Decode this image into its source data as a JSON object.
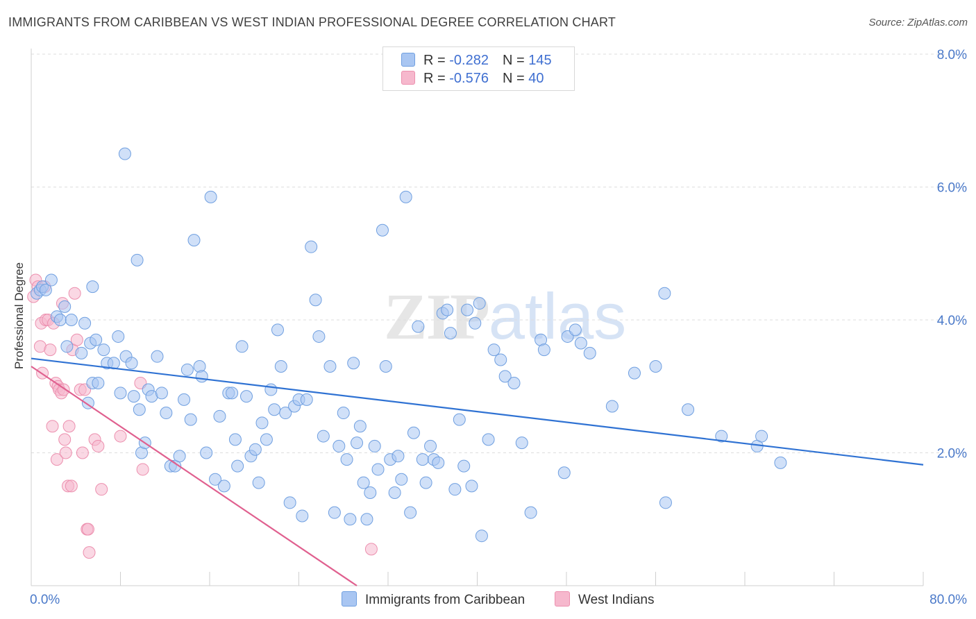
{
  "title": "IMMIGRANTS FROM CARIBBEAN VS WEST INDIAN PROFESSIONAL DEGREE CORRELATION CHART",
  "source": "Source: ZipAtlas.com",
  "watermark": {
    "zip": "ZIP",
    "atlas": "atlas"
  },
  "legend_top": [
    {
      "r_label": "R = ",
      "r_value": "-0.282",
      "n_label": "N = ",
      "n_value": "145"
    },
    {
      "r_label": "R = ",
      "r_value": "-0.576",
      "n_label": "N = ",
      "n_value": "40"
    }
  ],
  "colors": {
    "blue_fill": "#a9c6f2",
    "blue_stroke": "#6f9fe0",
    "blue_line": "#2f72d3",
    "pink_fill": "#f6b8cd",
    "pink_stroke": "#ec8fae",
    "pink_line": "#e0608f",
    "grid": "#dedede",
    "tick_label": "#4a79c9"
  },
  "chart_data": {
    "type": "scatter",
    "title": "IMMIGRANTS FROM CARIBBEAN VS WEST INDIAN PROFESSIONAL DEGREE CORRELATION CHART",
    "xlabel": "",
    "ylabel": "Professional Degree",
    "xlim": [
      0,
      80
    ],
    "ylim": [
      0,
      8.0
    ],
    "x_tick_labels": [
      "0.0%",
      "80.0%"
    ],
    "y_ticks": [
      2.0,
      4.0,
      6.0,
      8.0
    ],
    "y_tick_labels": [
      "2.0%",
      "4.0%",
      "6.0%",
      "8.0%"
    ],
    "grid": "horizontal dashed",
    "legend_placement": "bottom",
    "series": [
      {
        "name": "Immigrants from Caribbean",
        "color": "#a9c6f2",
        "trend": {
          "x": [
            0,
            80
          ],
          "y": [
            3.42,
            1.82
          ]
        },
        "points": [
          [
            0.5,
            4.4
          ],
          [
            0.8,
            4.45
          ],
          [
            1.0,
            4.5
          ],
          [
            1.3,
            4.45
          ],
          [
            1.8,
            4.6
          ],
          [
            2.3,
            4.05
          ],
          [
            3.0,
            4.2
          ],
          [
            2.6,
            4.0
          ],
          [
            3.2,
            3.6
          ],
          [
            3.6,
            4.0
          ],
          [
            4.5,
            3.5
          ],
          [
            4.8,
            3.95
          ],
          [
            5.3,
            3.65
          ],
          [
            5.8,
            3.7
          ],
          [
            5.5,
            4.5
          ],
          [
            5.1,
            2.75
          ],
          [
            5.5,
            3.05
          ],
          [
            6.0,
            3.05
          ],
          [
            6.5,
            3.55
          ],
          [
            6.8,
            3.35
          ],
          [
            7.4,
            3.35
          ],
          [
            7.8,
            3.75
          ],
          [
            8.0,
            2.9
          ],
          [
            8.4,
            6.5
          ],
          [
            8.5,
            3.45
          ],
          [
            9.0,
            3.35
          ],
          [
            9.2,
            2.85
          ],
          [
            9.5,
            4.9
          ],
          [
            9.7,
            2.65
          ],
          [
            9.9,
            2.0
          ],
          [
            10.2,
            2.15
          ],
          [
            10.5,
            2.95
          ],
          [
            10.8,
            2.85
          ],
          [
            11.3,
            3.45
          ],
          [
            11.7,
            2.9
          ],
          [
            12.1,
            2.6
          ],
          [
            12.5,
            1.8
          ],
          [
            12.9,
            1.8
          ],
          [
            13.3,
            1.95
          ],
          [
            13.7,
            2.8
          ],
          [
            14.0,
            3.25
          ],
          [
            14.3,
            2.5
          ],
          [
            14.6,
            5.2
          ],
          [
            15.1,
            3.3
          ],
          [
            15.3,
            3.15
          ],
          [
            15.7,
            2.0
          ],
          [
            16.1,
            5.85
          ],
          [
            16.5,
            1.6
          ],
          [
            16.9,
            2.55
          ],
          [
            17.3,
            1.5
          ],
          [
            17.7,
            2.9
          ],
          [
            18.0,
            2.9
          ],
          [
            18.3,
            2.2
          ],
          [
            18.5,
            1.8
          ],
          [
            18.9,
            3.6
          ],
          [
            19.3,
            2.85
          ],
          [
            19.7,
            1.95
          ],
          [
            20.1,
            2.05
          ],
          [
            20.4,
            1.55
          ],
          [
            20.7,
            2.45
          ],
          [
            21.1,
            2.2
          ],
          [
            21.5,
            2.95
          ],
          [
            21.8,
            2.65
          ],
          [
            22.1,
            3.85
          ],
          [
            22.4,
            3.3
          ],
          [
            22.8,
            2.6
          ],
          [
            23.2,
            1.25
          ],
          [
            23.6,
            2.7
          ],
          [
            24.0,
            2.8
          ],
          [
            24.3,
            1.05
          ],
          [
            24.7,
            2.8
          ],
          [
            25.1,
            5.1
          ],
          [
            25.5,
            4.3
          ],
          [
            25.8,
            3.75
          ],
          [
            26.2,
            2.25
          ],
          [
            26.8,
            3.3
          ],
          [
            27.2,
            1.1
          ],
          [
            27.6,
            2.1
          ],
          [
            28.0,
            2.6
          ],
          [
            28.3,
            1.9
          ],
          [
            28.6,
            1.0
          ],
          [
            28.9,
            3.35
          ],
          [
            29.2,
            2.15
          ],
          [
            29.5,
            2.4
          ],
          [
            29.8,
            1.55
          ],
          [
            30.1,
            1.0
          ],
          [
            30.4,
            1.4
          ],
          [
            30.8,
            2.1
          ],
          [
            31.1,
            1.75
          ],
          [
            31.5,
            5.35
          ],
          [
            31.8,
            3.3
          ],
          [
            32.2,
            1.9
          ],
          [
            32.6,
            1.4
          ],
          [
            32.9,
            1.95
          ],
          [
            33.2,
            1.6
          ],
          [
            33.6,
            5.85
          ],
          [
            34.0,
            1.1
          ],
          [
            34.3,
            2.3
          ],
          [
            34.7,
            3.9
          ],
          [
            35.1,
            1.9
          ],
          [
            35.4,
            1.55
          ],
          [
            35.8,
            2.1
          ],
          [
            36.1,
            1.9
          ],
          [
            36.5,
            1.85
          ],
          [
            36.9,
            4.1
          ],
          [
            37.3,
            4.15
          ],
          [
            37.6,
            3.8
          ],
          [
            38.0,
            1.45
          ],
          [
            38.4,
            2.5
          ],
          [
            38.8,
            1.8
          ],
          [
            39.1,
            4.15
          ],
          [
            39.5,
            1.5
          ],
          [
            39.8,
            3.95
          ],
          [
            40.2,
            4.25
          ],
          [
            40.4,
            0.75
          ],
          [
            41.0,
            2.2
          ],
          [
            41.5,
            3.55
          ],
          [
            42.1,
            3.4
          ],
          [
            42.5,
            3.15
          ],
          [
            43.3,
            3.05
          ],
          [
            44.0,
            2.15
          ],
          [
            44.8,
            1.1
          ],
          [
            45.7,
            3.7
          ],
          [
            46.0,
            3.55
          ],
          [
            47.8,
            1.7
          ],
          [
            48.1,
            3.75
          ],
          [
            48.8,
            3.85
          ],
          [
            49.3,
            3.65
          ],
          [
            50.1,
            3.5
          ],
          [
            52.1,
            2.7
          ],
          [
            54.1,
            3.2
          ],
          [
            56.0,
            3.3
          ],
          [
            56.8,
            4.4
          ],
          [
            56.9,
            1.25
          ],
          [
            58.9,
            2.65
          ],
          [
            61.9,
            2.25
          ],
          [
            65.1,
            2.1
          ],
          [
            65.5,
            2.25
          ],
          [
            67.2,
            1.85
          ]
        ]
      },
      {
        "name": "West Indians",
        "color": "#f6b8cd",
        "trend": {
          "x": [
            0,
            29.2
          ],
          "y": [
            3.3,
            0.0
          ]
        },
        "points": [
          [
            0.2,
            4.35
          ],
          [
            0.4,
            4.6
          ],
          [
            0.6,
            4.5
          ],
          [
            0.8,
            3.6
          ],
          [
            0.9,
            3.95
          ],
          [
            1.0,
            3.2
          ],
          [
            1.2,
            4.5
          ],
          [
            1.3,
            4.0
          ],
          [
            1.5,
            4.0
          ],
          [
            1.7,
            3.55
          ],
          [
            1.9,
            2.4
          ],
          [
            2.0,
            3.95
          ],
          [
            2.2,
            3.05
          ],
          [
            2.3,
            1.9
          ],
          [
            2.4,
            3.0
          ],
          [
            2.5,
            2.95
          ],
          [
            2.7,
            2.9
          ],
          [
            2.8,
            4.25
          ],
          [
            2.9,
            2.95
          ],
          [
            3.0,
            2.2
          ],
          [
            3.1,
            2.0
          ],
          [
            3.3,
            1.5
          ],
          [
            3.4,
            2.4
          ],
          [
            3.6,
            1.5
          ],
          [
            3.7,
            3.55
          ],
          [
            3.9,
            4.4
          ],
          [
            4.1,
            3.7
          ],
          [
            4.4,
            2.95
          ],
          [
            4.6,
            2.0
          ],
          [
            4.8,
            2.95
          ],
          [
            5.0,
            0.85
          ],
          [
            5.1,
            0.85
          ],
          [
            5.2,
            0.5
          ],
          [
            5.7,
            2.2
          ],
          [
            6.0,
            2.1
          ],
          [
            6.3,
            1.45
          ],
          [
            8.0,
            2.25
          ],
          [
            9.8,
            3.05
          ],
          [
            10.0,
            1.75
          ],
          [
            30.5,
            0.55
          ]
        ]
      }
    ]
  }
}
